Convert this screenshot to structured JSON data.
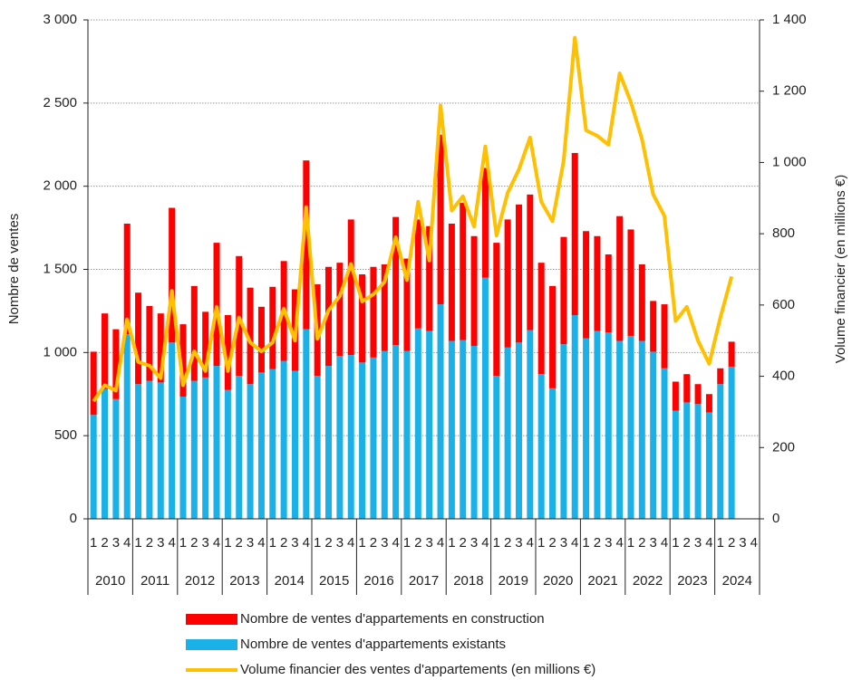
{
  "chart_data": {
    "type": "bar-line",
    "y_label": "Nombre de ventes",
    "y2_label": "Volume financier (en millions €)",
    "categories": [
      "1",
      "2",
      "3",
      "4",
      "1",
      "2",
      "3",
      "4",
      "1",
      "2",
      "3",
      "4",
      "1",
      "2",
      "3",
      "4",
      "1",
      "2",
      "3",
      "4",
      "1",
      "2",
      "3",
      "4",
      "1",
      "2",
      "3",
      "4",
      "1",
      "2",
      "3",
      "4",
      "1",
      "2",
      "3",
      "4",
      "1",
      "2",
      "3",
      "4",
      "1",
      "2",
      "3",
      "4",
      "1",
      "2",
      "3",
      "4",
      "1",
      "2",
      "3",
      "4",
      "1",
      "2",
      "3",
      "4",
      "1",
      "2",
      "3",
      "4"
    ],
    "year_groups": [
      "2010",
      "2011",
      "2012",
      "2013",
      "2014",
      "2015",
      "2016",
      "2017",
      "2018",
      "2019",
      "2020",
      "2021",
      "2022",
      "2023",
      "2024"
    ],
    "ylim": [
      0,
      3000
    ],
    "yticks": [
      0,
      500,
      {
        "value": 1000,
        "label": "1 000"
      },
      {
        "value": 1500,
        "label": "1 500"
      },
      {
        "value": 2000,
        "label": "2 000"
      },
      {
        "value": 2500,
        "label": "2 500"
      },
      {
        "value": 3000,
        "label": "3 000"
      }
    ],
    "y2lim": [
      0,
      1400
    ],
    "y2ticks": [
      0,
      200,
      400,
      600,
      800,
      {
        "value": 1000,
        "label": "1 000"
      },
      {
        "value": 1200,
        "label": "1 200"
      },
      {
        "value": 1400,
        "label": "1 400"
      }
    ],
    "grid": true,
    "series": [
      {
        "name": "Nombre de ventes d'appartements existants",
        "color": "#1ab0e8",
        "kind": "bar",
        "values": [
          625,
          780,
          720,
          1110,
          810,
          830,
          820,
          1060,
          735,
          830,
          850,
          920,
          775,
          860,
          810,
          880,
          900,
          950,
          890,
          1140,
          860,
          920,
          980,
          985,
          940,
          970,
          1010,
          1045,
          1010,
          1145,
          1130,
          1290,
          1070,
          1075,
          1040,
          1450,
          860,
          1030,
          1060,
          1135,
          870,
          785,
          1050,
          1225,
          1085,
          1130,
          1120,
          1070,
          1100,
          1070,
          1005,
          905,
          650,
          700,
          690,
          640,
          810,
          915,
          null,
          null
        ]
      },
      {
        "name": "Nombre de ventes d'appartements en construction",
        "color": "#ff0000",
        "kind": "bar",
        "values": [
          380,
          455,
          420,
          665,
          550,
          450,
          415,
          810,
          435,
          570,
          395,
          740,
          450,
          720,
          580,
          395,
          495,
          600,
          490,
          1015,
          550,
          595,
          560,
          815,
          530,
          545,
          520,
          770,
          555,
          655,
          630,
          1020,
          705,
          825,
          660,
          660,
          800,
          770,
          830,
          815,
          670,
          615,
          645,
          975,
          645,
          570,
          470,
          750,
          640,
          460,
          305,
          385,
          175,
          170,
          120,
          110,
          95,
          150,
          null,
          null
        ]
      },
      {
        "name": "Volume financier des ventes d'appartements (en millions €)",
        "color": "#ffc000",
        "kind": "line",
        "axis": "y2",
        "values": [
          330,
          375,
          360,
          560,
          440,
          430,
          395,
          640,
          375,
          470,
          415,
          595,
          415,
          565,
          495,
          470,
          495,
          590,
          500,
          875,
          505,
          585,
          625,
          715,
          610,
          630,
          665,
          790,
          670,
          890,
          725,
          1160,
          865,
          905,
          820,
          1045,
          795,
          915,
          980,
          1070,
          890,
          835,
          1005,
          1350,
          1090,
          1075,
          1050,
          1250,
          1170,
          1065,
          910,
          850,
          555,
          595,
          500,
          435,
          565,
          680,
          null,
          null
        ]
      }
    ]
  }
}
